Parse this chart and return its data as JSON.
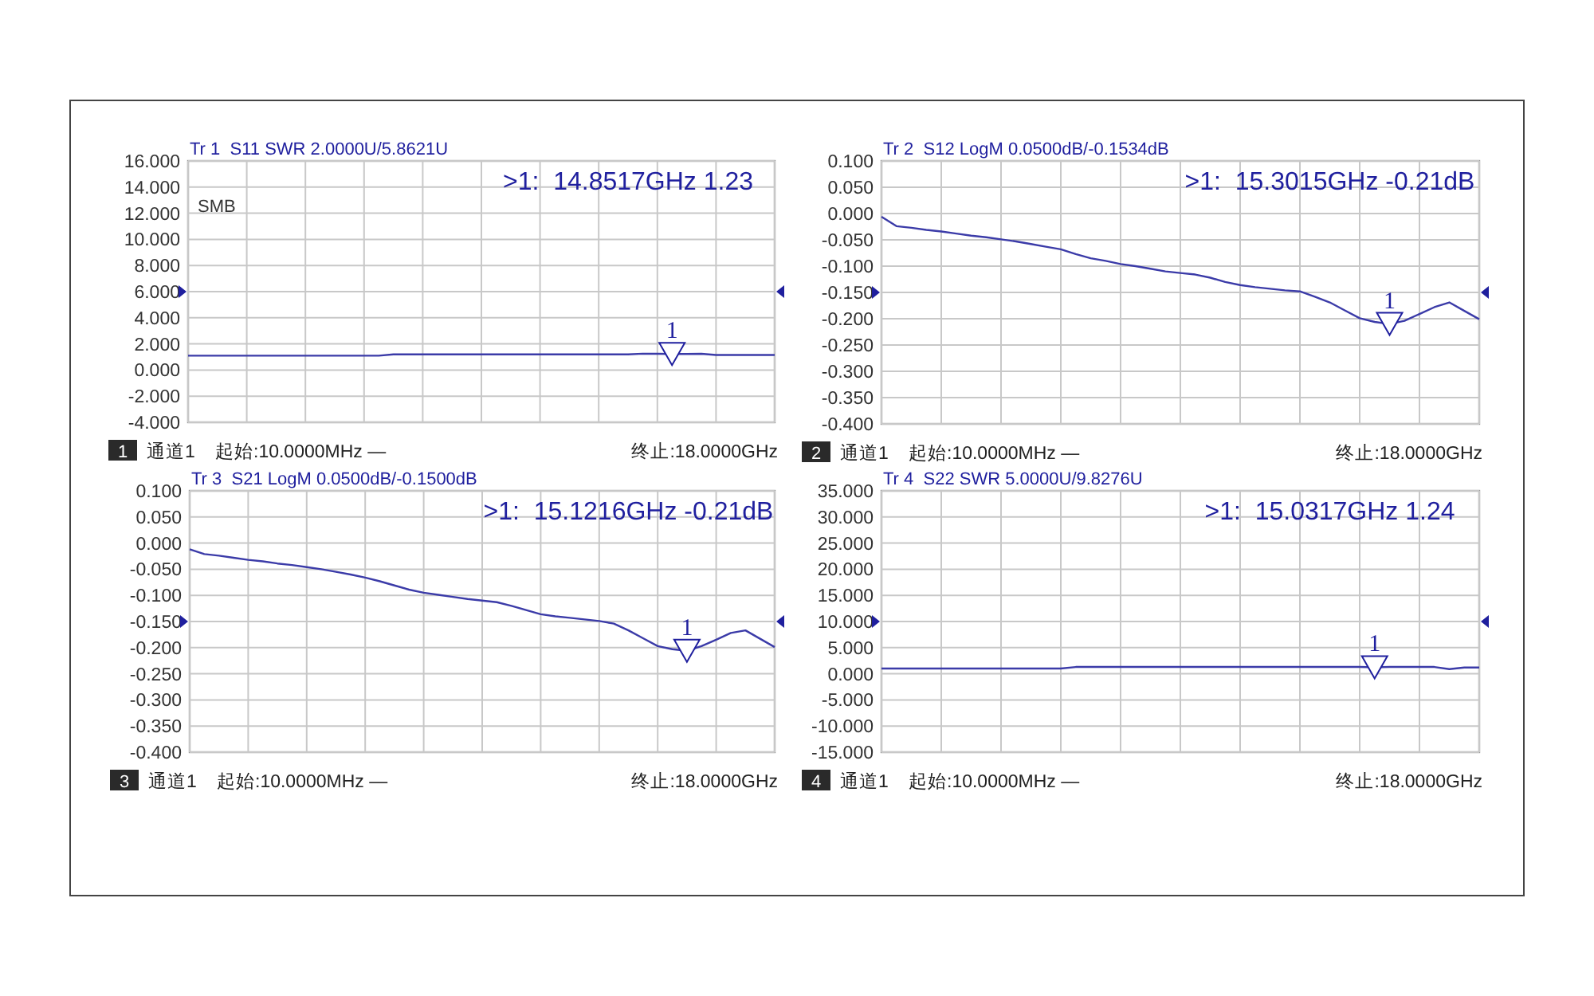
{
  "chart_data": [
    {
      "type": "line",
      "title": "Tr 1  S11 SWR 2.0000U/5.8621U",
      "categories": [
        null,
        null,
        null,
        null,
        null,
        null,
        null,
        null,
        null,
        null,
        null,
        null,
        null,
        null,
        null,
        null,
        null,
        null,
        null,
        null,
        null,
        null,
        null,
        null,
        null,
        null,
        null,
        null,
        null,
        null,
        null,
        null,
        null,
        null,
        null,
        null,
        null,
        null,
        null,
        null,
        null
      ],
      "ylim": [
        -4,
        16
      ],
      "yticks": [
        {
          "value": -4,
          "label": "-4.000"
        },
        {
          "value": -2,
          "label": "-2.000"
        },
        {
          "value": 0,
          "label": "0.000"
        },
        {
          "value": 2,
          "label": "2.000"
        },
        {
          "value": 4,
          "label": "4.000"
        },
        {
          "value": 6,
          "label": "6.000"
        },
        {
          "value": 8,
          "label": "8.000"
        },
        {
          "value": 10,
          "label": "10.000"
        },
        {
          "value": 12,
          "label": "12.000"
        },
        {
          "value": 14,
          "label": "14.000"
        },
        {
          "value": 16,
          "label": "16.000"
        }
      ],
      "grid": true,
      "tick_labels": "y",
      "line_style": "solid",
      "series": [
        {
          "color": "#3b3ba8",
          "values": [
            1.1,
            1.1,
            1.1,
            1.1,
            1.1,
            1.1,
            1.1,
            1.1,
            1.1,
            1.1,
            1.1,
            1.1,
            1.1,
            1.1,
            1.2,
            1.2,
            1.2,
            1.2,
            1.2,
            1.2,
            1.2,
            1.2,
            1.2,
            1.2,
            1.2,
            1.2,
            1.2,
            1.2,
            1.2,
            1.2,
            1.2,
            1.25,
            1.24,
            1.23,
            1.23,
            1.24,
            1.15,
            1.15,
            1.15,
            1.15,
            1.15
          ]
        },
        {
          "type": "scatter",
          "marker": "triangle",
          "color": "#1f1f9e",
          "values": [
            null,
            null,
            null,
            null,
            null,
            null,
            null,
            null,
            null,
            null,
            null,
            null,
            null,
            null,
            null,
            null,
            null,
            null,
            null,
            null,
            null,
            null,
            null,
            null,
            null,
            null,
            null,
            null,
            null,
            null,
            null,
            null,
            null,
            1.23,
            null,
            null,
            null,
            null,
            null,
            null,
            null
          ]
        }
      ],
      "annotations": [
        ">1:  14.8517GHz 1.23",
        "1",
        "SMB",
        "1",
        "通道1",
        "起始:10.0000MHz —",
        "终止:18.0000GHz"
      ]
    },
    {
      "type": "line",
      "title": "Tr 2  S12 LogM 0.0500dB/-0.1534dB",
      "categories": [
        null,
        null,
        null,
        null,
        null,
        null,
        null,
        null,
        null,
        null,
        null,
        null,
        null,
        null,
        null,
        null,
        null,
        null,
        null,
        null,
        null,
        null,
        null,
        null,
        null,
        null,
        null,
        null,
        null,
        null,
        null,
        null,
        null,
        null,
        null,
        null,
        null,
        null,
        null,
        null,
        null
      ],
      "ylim": [
        -0.4,
        0.1
      ],
      "yticks": [
        {
          "value": -0.4,
          "label": "-0.400"
        },
        {
          "value": -0.35,
          "label": "-0.350"
        },
        {
          "value": -0.3,
          "label": "-0.300"
        },
        {
          "value": -0.25,
          "label": "-0.250"
        },
        {
          "value": -0.2,
          "label": "-0.200"
        },
        {
          "value": -0.15,
          "label": "-0.150"
        },
        {
          "value": -0.1,
          "label": "-0.100"
        },
        {
          "value": -0.05,
          "label": "-0.050"
        },
        {
          "value": 0,
          "label": "0.000"
        },
        {
          "value": 0.05,
          "label": "0.050"
        },
        {
          "value": 0.1,
          "label": "0.100"
        }
      ],
      "grid": true,
      "tick_labels": "y",
      "line_style": "solid",
      "series": [
        {
          "color": "#3b3ba8",
          "values": [
            -0.006,
            -0.024,
            -0.027,
            -0.031,
            -0.034,
            -0.038,
            -0.042,
            -0.045,
            -0.049,
            -0.053,
            -0.058,
            -0.063,
            -0.068,
            -0.077,
            -0.085,
            -0.09,
            -0.096,
            -0.1,
            -0.105,
            -0.11,
            -0.113,
            -0.116,
            -0.122,
            -0.13,
            -0.136,
            -0.14,
            -0.143,
            -0.146,
            -0.148,
            -0.158,
            -0.169,
            -0.184,
            -0.199,
            -0.206,
            -0.21,
            -0.204,
            -0.191,
            -0.178,
            -0.169,
            -0.185,
            -0.201
          ]
        },
        {
          "type": "scatter",
          "marker": "triangle",
          "color": "#1f1f9e",
          "values": [
            null,
            null,
            null,
            null,
            null,
            null,
            null,
            null,
            null,
            null,
            null,
            null,
            null,
            null,
            null,
            null,
            null,
            null,
            null,
            null,
            null,
            null,
            null,
            null,
            null,
            null,
            null,
            null,
            null,
            null,
            null,
            null,
            null,
            null,
            -0.21,
            null,
            null,
            null,
            null,
            null,
            null
          ]
        }
      ],
      "annotations": [
        ">1:  15.3015GHz -0.21dB",
        "1",
        "2",
        "通道1",
        "起始:10.0000MHz —",
        "终止:18.0000GHz"
      ]
    },
    {
      "type": "line",
      "title": "Tr 3  S21 LogM 0.0500dB/-0.1500dB",
      "categories": [
        null,
        null,
        null,
        null,
        null,
        null,
        null,
        null,
        null,
        null,
        null,
        null,
        null,
        null,
        null,
        null,
        null,
        null,
        null,
        null,
        null,
        null,
        null,
        null,
        null,
        null,
        null,
        null,
        null,
        null,
        null,
        null,
        null,
        null,
        null,
        null,
        null,
        null,
        null,
        null,
        null
      ],
      "ylim": [
        -0.4,
        0.1
      ],
      "yticks": [
        {
          "value": -0.4,
          "label": "-0.400"
        },
        {
          "value": -0.35,
          "label": "-0.350"
        },
        {
          "value": -0.3,
          "label": "-0.300"
        },
        {
          "value": -0.25,
          "label": "-0.250"
        },
        {
          "value": -0.2,
          "label": "-0.200"
        },
        {
          "value": -0.15,
          "label": "-0.150"
        },
        {
          "value": -0.1,
          "label": "-0.100"
        },
        {
          "value": -0.05,
          "label": "-0.050"
        },
        {
          "value": 0,
          "label": "0.000"
        },
        {
          "value": 0.05,
          "label": "0.050"
        },
        {
          "value": 0.1,
          "label": "0.100"
        }
      ],
      "grid": true,
      "tick_labels": "y",
      "line_style": "solid",
      "series": [
        {
          "color": "#3b3ba8",
          "values": [
            -0.012,
            -0.021,
            -0.024,
            -0.028,
            -0.032,
            -0.035,
            -0.039,
            -0.042,
            -0.046,
            -0.05,
            -0.055,
            -0.06,
            -0.066,
            -0.073,
            -0.081,
            -0.089,
            -0.095,
            -0.099,
            -0.103,
            -0.107,
            -0.11,
            -0.113,
            -0.12,
            -0.128,
            -0.136,
            -0.14,
            -0.143,
            -0.146,
            -0.149,
            -0.154,
            -0.167,
            -0.182,
            -0.197,
            -0.203,
            -0.206,
            -0.197,
            -0.185,
            -0.172,
            -0.167,
            -0.183,
            -0.199
          ]
        },
        {
          "type": "scatter",
          "marker": "triangle",
          "color": "#1f1f9e",
          "values": [
            null,
            null,
            null,
            null,
            null,
            null,
            null,
            null,
            null,
            null,
            null,
            null,
            null,
            null,
            null,
            null,
            null,
            null,
            null,
            null,
            null,
            null,
            null,
            null,
            null,
            null,
            null,
            null,
            null,
            null,
            null,
            null,
            null,
            null,
            -0.206,
            null,
            null,
            null,
            null,
            null,
            null
          ]
        }
      ],
      "annotations": [
        ">1:  15.1216GHz -0.21dB",
        "1",
        "3",
        "通道1",
        "起始:10.0000MHz —",
        "终止:18.0000GHz"
      ]
    },
    {
      "type": "line",
      "title": "Tr 4  S22 SWR 5.0000U/9.8276U",
      "categories": [
        null,
        null,
        null,
        null,
        null,
        null,
        null,
        null,
        null,
        null,
        null,
        null,
        null,
        null,
        null,
        null,
        null,
        null,
        null,
        null,
        null,
        null,
        null,
        null,
        null,
        null,
        null,
        null,
        null,
        null,
        null,
        null,
        null,
        null,
        null,
        null,
        null,
        null,
        null,
        null,
        null
      ],
      "ylim": [
        -15,
        35
      ],
      "yticks": [
        {
          "value": -15,
          "label": "-15.000"
        },
        {
          "value": -10,
          "label": "-10.000"
        },
        {
          "value": -5,
          "label": "-5.000"
        },
        {
          "value": 0,
          "label": "0.000"
        },
        {
          "value": 5,
          "label": "5.000"
        },
        {
          "value": 10,
          "label": "10.000"
        },
        {
          "value": 15,
          "label": "15.000"
        },
        {
          "value": 20,
          "label": "20.000"
        },
        {
          "value": 25,
          "label": "25.000"
        },
        {
          "value": 30,
          "label": "30.000"
        },
        {
          "value": 35,
          "label": "35.000"
        }
      ],
      "grid": true,
      "tick_labels": "y",
      "line_style": "solid",
      "series": [
        {
          "color": "#3b3ba8",
          "values": [
            1.0,
            1.0,
            1.0,
            1.0,
            1.0,
            1.0,
            1.0,
            1.0,
            1.0,
            1.0,
            1.0,
            1.0,
            1.0,
            1.3,
            1.3,
            1.3,
            1.3,
            1.3,
            1.3,
            1.3,
            1.3,
            1.3,
            1.3,
            1.3,
            1.3,
            1.3,
            1.3,
            1.3,
            1.3,
            1.3,
            1.3,
            1.3,
            1.3,
            1.24,
            1.3,
            1.3,
            1.3,
            1.3,
            0.9,
            1.2,
            1.2
          ]
        },
        {
          "type": "scatter",
          "marker": "triangle",
          "color": "#1f1f9e",
          "values": [
            null,
            null,
            null,
            null,
            null,
            null,
            null,
            null,
            null,
            null,
            null,
            null,
            null,
            null,
            null,
            null,
            null,
            null,
            null,
            null,
            null,
            null,
            null,
            null,
            null,
            null,
            null,
            null,
            null,
            null,
            null,
            null,
            null,
            1.24,
            null,
            null,
            null,
            null,
            null,
            null,
            null
          ]
        }
      ],
      "annotations": [
        ">1:  15.0317GHz 1.24",
        "1",
        "4",
        "通道1",
        "起始:10.0000MHz —",
        "终止:18.0000GHz"
      ]
    }
  ]
}
